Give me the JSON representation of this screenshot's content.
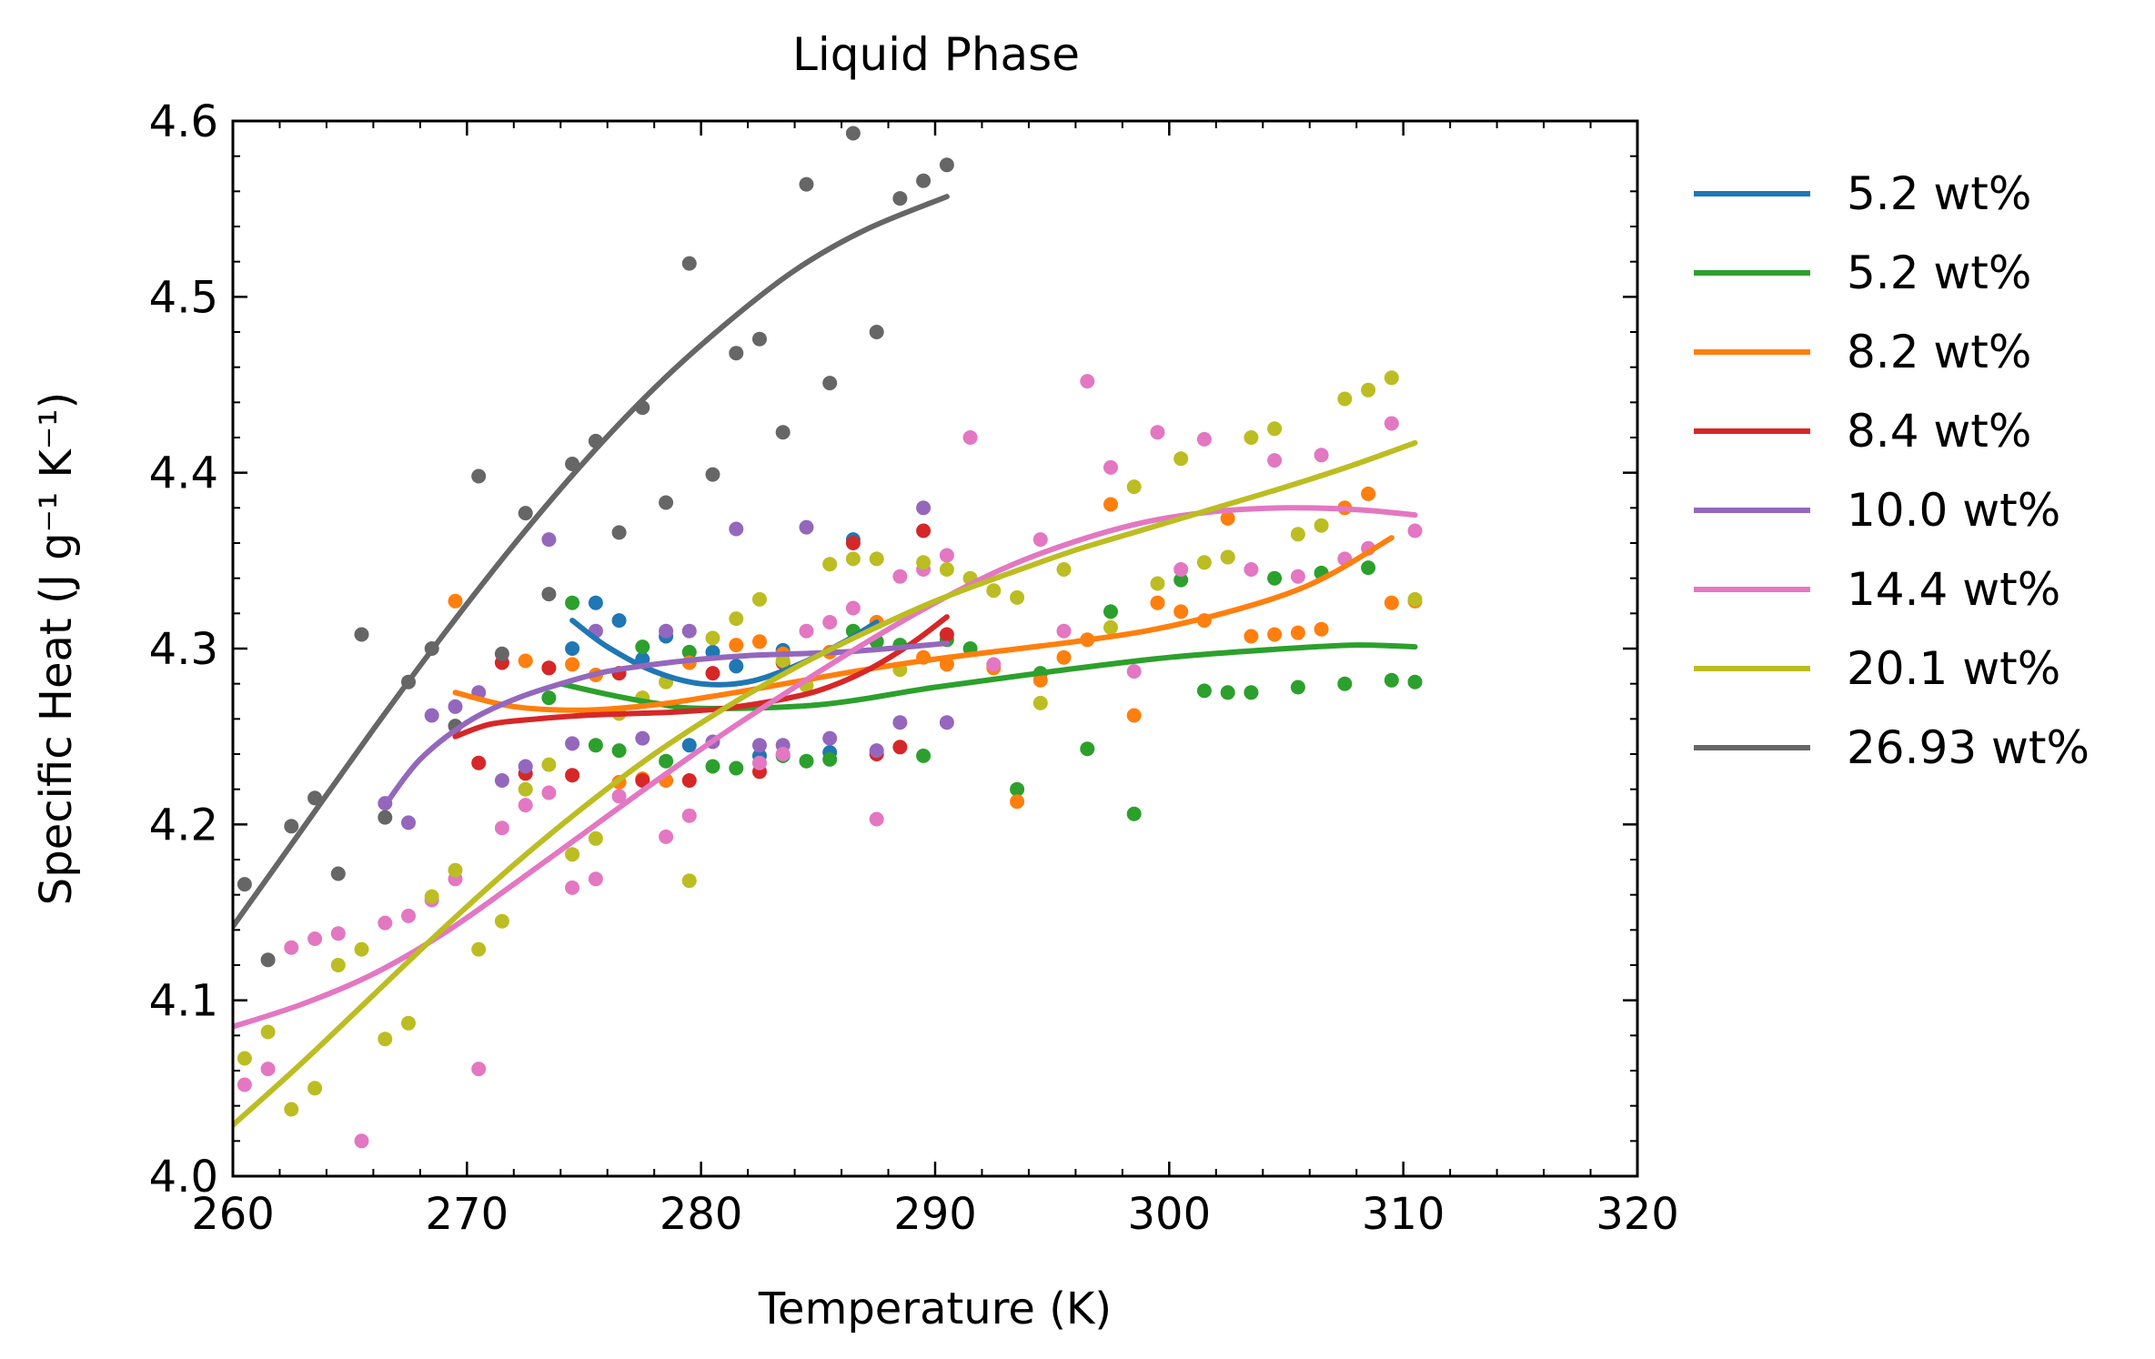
{
  "chart_data": {
    "type": "scatter",
    "title": "Liquid Phase",
    "xlabel": "Temperature (K)",
    "ylabel": "Specific Heat (J g⁻¹ K⁻¹)",
    "xlim": [
      260,
      320
    ],
    "ylim": [
      4.0,
      4.6
    ],
    "xticks": [
      "260",
      "270",
      "280",
      "290",
      "300",
      "310",
      "320"
    ],
    "yticks": [
      "4.0",
      "4.1",
      "4.2",
      "4.3",
      "4.4",
      "4.5",
      "4.6"
    ],
    "grid": false,
    "legend_position": "outside-right",
    "series": [
      {
        "name": "5.2 wt%",
        "color": "#1f77b4",
        "x": [
          274.5,
          275.5,
          276.5,
          277.5,
          278.5,
          279.5,
          280.5,
          281.5,
          282.5,
          283.5,
          285.5,
          286.5
        ],
        "y": [
          4.3,
          4.326,
          4.316,
          4.294,
          4.307,
          4.245,
          4.298,
          4.29,
          4.239,
          4.299,
          4.241,
          4.362
        ],
        "fit_x": [
          274.5,
          276,
          278,
          280,
          282,
          284,
          286,
          287.5
        ],
        "fit_y": [
          4.316,
          4.301,
          4.287,
          4.28,
          4.281,
          4.29,
          4.303,
          4.315
        ]
      },
      {
        "name": "5.2 wt%",
        "color": "#2ca02c",
        "x": [
          273.5,
          274.5,
          275.5,
          276.5,
          277.5,
          278.5,
          279.5,
          280.5,
          281.5,
          283.5,
          284.5,
          285.5,
          286.5,
          287.5,
          288.5,
          289.5,
          290.5,
          291.5,
          293.5,
          294.5,
          296.5,
          297.5,
          298.5,
          300.5,
          301.5,
          302.5,
          303.5,
          304.5,
          305.5,
          306.5,
          307.5,
          308.5,
          309.5,
          310.5
        ],
        "y": [
          4.272,
          4.326,
          4.245,
          4.242,
          4.301,
          4.236,
          4.298,
          4.233,
          4.232,
          4.239,
          4.236,
          4.237,
          4.31,
          4.304,
          4.302,
          4.239,
          4.305,
          4.3,
          4.22,
          4.286,
          4.243,
          4.321,
          4.206,
          4.339,
          4.276,
          4.275,
          4.275,
          4.34,
          4.278,
          4.343,
          4.28,
          4.346,
          4.282,
          4.281
        ],
        "fit_x": [
          274,
          276,
          278,
          280,
          285,
          290,
          295,
          300,
          305,
          308,
          310.5
        ],
        "fit_y": [
          4.28,
          4.274,
          4.269,
          4.266,
          4.268,
          4.278,
          4.287,
          4.295,
          4.3,
          4.302,
          4.301
        ]
      },
      {
        "name": "8.2 wt%",
        "color": "#ff7f0e",
        "x": [
          269.5,
          272.5,
          273.5,
          274.5,
          275.5,
          276.5,
          277.5,
          278.5,
          279.5,
          281.5,
          282.5,
          283.5,
          285.5,
          287.5,
          289.5,
          290.5,
          292.5,
          293.5,
          294.5,
          295.5,
          296.5,
          297.5,
          298.5,
          299.5,
          300.5,
          301.5,
          302.5,
          303.5,
          304.5,
          305.5,
          306.5,
          307.5,
          308.5,
          309.5,
          310.5
        ],
        "y": [
          4.327,
          4.293,
          4.289,
          4.291,
          4.285,
          4.224,
          4.226,
          4.225,
          4.292,
          4.302,
          4.304,
          4.297,
          4.298,
          4.315,
          4.295,
          4.291,
          4.289,
          4.213,
          4.282,
          4.295,
          4.305,
          4.382,
          4.262,
          4.326,
          4.321,
          4.316,
          4.374,
          4.307,
          4.308,
          4.309,
          4.311,
          4.38,
          4.388,
          4.326,
          4.327
        ],
        "fit_x": [
          269.5,
          272,
          275,
          278,
          281,
          284,
          287,
          290,
          293,
          296,
          299,
          302,
          305,
          307,
          309.5
        ],
        "fit_y": [
          4.275,
          4.267,
          4.265,
          4.268,
          4.274,
          4.281,
          4.288,
          4.294,
          4.299,
          4.304,
          4.31,
          4.319,
          4.331,
          4.343,
          4.363
        ]
      },
      {
        "name": "8.4 wt%",
        "color": "#d62728",
        "x": [
          270.5,
          271.5,
          272.5,
          273.5,
          274.5,
          276.5,
          277.5,
          279.5,
          280.5,
          282.5,
          283.5,
          286.5,
          287.5,
          288.5,
          289.5,
          290.5
        ],
        "y": [
          4.235,
          4.292,
          4.229,
          4.289,
          4.228,
          4.286,
          4.225,
          4.225,
          4.286,
          4.23,
          4.292,
          4.36,
          4.24,
          4.244,
          4.367,
          4.308
        ],
        "fit_x": [
          269.5,
          271,
          273,
          275,
          277,
          279,
          281,
          283,
          285,
          287,
          289,
          290.5
        ],
        "fit_y": [
          4.25,
          4.257,
          4.26,
          4.262,
          4.263,
          4.264,
          4.266,
          4.27,
          4.276,
          4.287,
          4.303,
          4.318
        ]
      },
      {
        "name": "10.0 wt%",
        "color": "#9467bd",
        "x": [
          266.5,
          267.5,
          268.5,
          269.5,
          270.5,
          271.5,
          272.5,
          273.5,
          274.5,
          275.5,
          277.5,
          278.5,
          279.5,
          280.5,
          281.5,
          282.5,
          283.5,
          284.5,
          285.5,
          287.5,
          288.5,
          289.5,
          290.5
        ],
        "y": [
          4.212,
          4.201,
          4.262,
          4.267,
          4.275,
          4.225,
          4.233,
          4.362,
          4.246,
          4.31,
          4.249,
          4.31,
          4.31,
          4.247,
          4.368,
          4.245,
          4.245,
          4.369,
          4.249,
          4.242,
          4.258,
          4.38,
          4.258
        ],
        "fit_x": [
          266.5,
          268,
          270,
          272,
          274,
          276,
          278,
          280,
          282,
          284,
          286,
          288,
          290.5
        ],
        "fit_y": [
          4.211,
          4.237,
          4.258,
          4.271,
          4.28,
          4.287,
          4.291,
          4.294,
          4.296,
          4.297,
          4.298,
          4.3,
          4.303
        ]
      },
      {
        "name": "14.4 wt%",
        "color": "#e377c2",
        "x": [
          260.5,
          261.5,
          262.5,
          263.5,
          264.5,
          265.5,
          266.5,
          267.5,
          268.5,
          269.5,
          270.5,
          271.5,
          272.5,
          273.5,
          274.5,
          275.5,
          276.5,
          278.5,
          279.5,
          282.5,
          283.5,
          284.5,
          285.5,
          286.5,
          287.5,
          288.5,
          289.5,
          290.5,
          291.5,
          292.5,
          294.5,
          295.5,
          296.5,
          297.5,
          298.5,
          299.5,
          300.5,
          301.5,
          302.5,
          303.5,
          304.5,
          305.5,
          306.5,
          307.5,
          308.5,
          309.5,
          310.5
        ],
        "y": [
          4.052,
          4.061,
          4.13,
          4.135,
          4.138,
          4.02,
          4.144,
          4.148,
          4.157,
          4.169,
          4.061,
          4.198,
          4.211,
          4.218,
          4.164,
          4.169,
          4.216,
          4.193,
          4.205,
          4.235,
          4.24,
          4.31,
          4.315,
          4.323,
          4.203,
          4.341,
          4.345,
          4.353,
          4.42,
          4.291,
          4.362,
          4.31,
          4.452,
          4.403,
          4.287,
          4.423,
          4.345,
          4.419,
          4.352,
          4.345,
          4.407,
          4.341,
          4.41,
          4.351,
          4.357,
          4.428,
          4.367
        ],
        "fit_x": [
          260,
          263,
          266,
          269,
          272,
          275,
          278,
          281,
          284,
          287,
          290,
          293,
          296,
          299,
          302,
          305,
          308,
          310.5
        ],
        "fit_y": [
          4.085,
          4.098,
          4.115,
          4.138,
          4.166,
          4.195,
          4.224,
          4.252,
          4.278,
          4.303,
          4.326,
          4.346,
          4.361,
          4.372,
          4.378,
          4.38,
          4.379,
          4.376
        ]
      },
      {
        "name": "20.1 wt%",
        "color": "#bcbd22",
        "x": [
          260.5,
          261.5,
          262.5,
          263.5,
          264.5,
          265.5,
          266.5,
          267.5,
          268.5,
          269.5,
          270.5,
          271.5,
          272.5,
          273.5,
          274.5,
          275.5,
          276.5,
          277.5,
          278.5,
          279.5,
          280.5,
          281.5,
          282.5,
          283.5,
          284.5,
          285.5,
          286.5,
          287.5,
          288.5,
          289.5,
          290.5,
          291.5,
          292.5,
          293.5,
          294.5,
          295.5,
          297.5,
          298.5,
          299.5,
          300.5,
          301.5,
          302.5,
          303.5,
          304.5,
          305.5,
          306.5,
          307.5,
          308.5,
          309.5,
          310.5
        ],
        "y": [
          4.067,
          4.082,
          4.038,
          4.05,
          4.12,
          4.129,
          4.078,
          4.087,
          4.159,
          4.174,
          4.129,
          4.145,
          4.22,
          4.234,
          4.183,
          4.192,
          4.263,
          4.272,
          4.281,
          4.168,
          4.306,
          4.317,
          4.328,
          4.293,
          4.279,
          4.348,
          4.351,
          4.351,
          4.288,
          4.349,
          4.345,
          4.34,
          4.333,
          4.329,
          4.269,
          4.345,
          4.312,
          4.392,
          4.337,
          4.408,
          4.349,
          4.352,
          4.42,
          4.425,
          4.365,
          4.37,
          4.442,
          4.447,
          4.454,
          4.328
        ],
        "fit_x": [
          260,
          263,
          266,
          269,
          272,
          275,
          278,
          281,
          284,
          287,
          290,
          293,
          296,
          299,
          302,
          305,
          308,
          310.5
        ],
        "fit_y": [
          4.029,
          4.065,
          4.103,
          4.141,
          4.177,
          4.21,
          4.24,
          4.266,
          4.289,
          4.309,
          4.327,
          4.342,
          4.356,
          4.368,
          4.38,
          4.392,
          4.405,
          4.417
        ]
      },
      {
        "name": "26.93 wt%",
        "color": "#666666",
        "x": [
          260.5,
          261.5,
          262.5,
          263.5,
          264.5,
          265.5,
          266.5,
          267.5,
          268.5,
          269.5,
          270.5,
          271.5,
          272.5,
          273.5,
          274.5,
          275.5,
          276.5,
          277.5,
          278.5,
          279.5,
          280.5,
          281.5,
          282.5,
          283.5,
          284.5,
          285.5,
          286.5,
          287.5,
          288.5,
          289.5,
          290.5
        ],
        "y": [
          4.166,
          4.123,
          4.199,
          4.215,
          4.172,
          4.308,
          4.204,
          4.281,
          4.3,
          4.256,
          4.398,
          4.297,
          4.377,
          4.331,
          4.405,
          4.418,
          4.366,
          4.437,
          4.383,
          4.519,
          4.399,
          4.468,
          4.476,
          4.423,
          4.564,
          4.451,
          4.593,
          4.48,
          4.556,
          4.566,
          4.575
        ],
        "fit_x": [
          260,
          263,
          266,
          269,
          272,
          275,
          278,
          281,
          284,
          287,
          290.5
        ],
        "fit_y": [
          4.142,
          4.198,
          4.254,
          4.308,
          4.359,
          4.406,
          4.448,
          4.484,
          4.515,
          4.538,
          4.557
        ]
      }
    ]
  }
}
